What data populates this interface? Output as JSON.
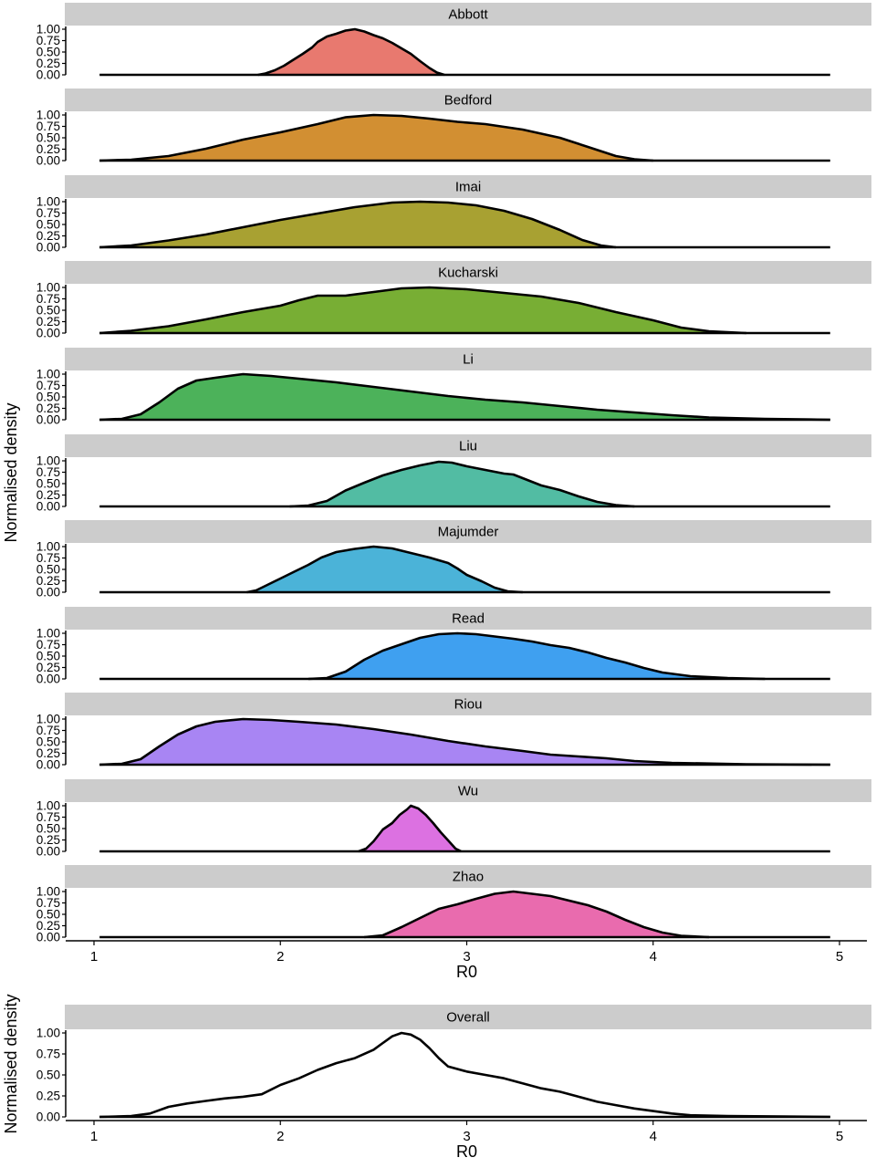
{
  "chart_data": [
    {
      "type": "area",
      "layout": "faceted small multiples, stacked vertically, shared x axis",
      "xlabel": "R0",
      "ylabel": "Normalised density",
      "xlim": [
        1,
        5
      ],
      "ylim": [
        0,
        1
      ],
      "xticks": [
        "1",
        "2",
        "3",
        "4",
        "5"
      ],
      "yticks": [
        "0.00",
        "0.25",
        "0.50",
        "0.75",
        "1.00"
      ],
      "grid": false,
      "legend": "none",
      "facets": [
        {
          "name": "Abbott",
          "color": "#E8796F",
          "points": [
            [
              1.88,
              0
            ],
            [
              1.92,
              0.03
            ],
            [
              1.97,
              0.1
            ],
            [
              2.02,
              0.2
            ],
            [
              2.07,
              0.33
            ],
            [
              2.12,
              0.46
            ],
            [
              2.17,
              0.6
            ],
            [
              2.2,
              0.72
            ],
            [
              2.25,
              0.84
            ],
            [
              2.3,
              0.9
            ],
            [
              2.35,
              0.97
            ],
            [
              2.4,
              1.0
            ],
            [
              2.45,
              0.95
            ],
            [
              2.5,
              0.87
            ],
            [
              2.55,
              0.8
            ],
            [
              2.6,
              0.7
            ],
            [
              2.65,
              0.58
            ],
            [
              2.7,
              0.46
            ],
            [
              2.75,
              0.3
            ],
            [
              2.8,
              0.15
            ],
            [
              2.84,
              0.05
            ],
            [
              2.88,
              0
            ]
          ]
        },
        {
          "name": "Bedford",
          "color": "#D28F32",
          "points": [
            [
              1.03,
              0
            ],
            [
              1.2,
              0.02
            ],
            [
              1.4,
              0.1
            ],
            [
              1.6,
              0.26
            ],
            [
              1.8,
              0.46
            ],
            [
              2.0,
              0.62
            ],
            [
              2.2,
              0.8
            ],
            [
              2.35,
              0.95
            ],
            [
              2.5,
              1.0
            ],
            [
              2.65,
              0.98
            ],
            [
              2.8,
              0.92
            ],
            [
              2.95,
              0.85
            ],
            [
              3.1,
              0.8
            ],
            [
              3.3,
              0.68
            ],
            [
              3.5,
              0.5
            ],
            [
              3.65,
              0.3
            ],
            [
              3.8,
              0.1
            ],
            [
              3.9,
              0.03
            ],
            [
              4.0,
              0
            ]
          ]
        },
        {
          "name": "Imai",
          "color": "#A8A132",
          "points": [
            [
              1.03,
              0
            ],
            [
              1.2,
              0.04
            ],
            [
              1.4,
              0.15
            ],
            [
              1.6,
              0.28
            ],
            [
              1.8,
              0.44
            ],
            [
              2.0,
              0.6
            ],
            [
              2.2,
              0.74
            ],
            [
              2.4,
              0.88
            ],
            [
              2.6,
              0.98
            ],
            [
              2.75,
              1.0
            ],
            [
              2.9,
              0.98
            ],
            [
              3.05,
              0.92
            ],
            [
              3.2,
              0.8
            ],
            [
              3.35,
              0.62
            ],
            [
              3.5,
              0.38
            ],
            [
              3.62,
              0.16
            ],
            [
              3.72,
              0.04
            ],
            [
              3.8,
              0
            ]
          ]
        },
        {
          "name": "Kucharski",
          "color": "#78AE34",
          "points": [
            [
              1.03,
              0
            ],
            [
              1.2,
              0.05
            ],
            [
              1.4,
              0.15
            ],
            [
              1.6,
              0.3
            ],
            [
              1.8,
              0.46
            ],
            [
              2.0,
              0.6
            ],
            [
              2.1,
              0.72
            ],
            [
              2.2,
              0.82
            ],
            [
              2.35,
              0.82
            ],
            [
              2.5,
              0.9
            ],
            [
              2.65,
              0.98
            ],
            [
              2.8,
              1.0
            ],
            [
              3.0,
              0.96
            ],
            [
              3.2,
              0.88
            ],
            [
              3.4,
              0.8
            ],
            [
              3.6,
              0.66
            ],
            [
              3.8,
              0.46
            ],
            [
              4.0,
              0.28
            ],
            [
              4.15,
              0.12
            ],
            [
              4.3,
              0.04
            ],
            [
              4.5,
              0
            ]
          ]
        },
        {
          "name": "Li",
          "color": "#4CB25A",
          "points": [
            [
              1.03,
              0
            ],
            [
              1.15,
              0.02
            ],
            [
              1.25,
              0.12
            ],
            [
              1.35,
              0.38
            ],
            [
              1.45,
              0.68
            ],
            [
              1.55,
              0.86
            ],
            [
              1.65,
              0.92
            ],
            [
              1.8,
              1.0
            ],
            [
              1.95,
              0.96
            ],
            [
              2.1,
              0.9
            ],
            [
              2.3,
              0.82
            ],
            [
              2.5,
              0.72
            ],
            [
              2.7,
              0.62
            ],
            [
              2.9,
              0.52
            ],
            [
              3.1,
              0.44
            ],
            [
              3.3,
              0.38
            ],
            [
              3.5,
              0.3
            ],
            [
              3.7,
              0.22
            ],
            [
              3.9,
              0.16
            ],
            [
              4.1,
              0.1
            ],
            [
              4.3,
              0.05
            ],
            [
              4.6,
              0.02
            ],
            [
              4.95,
              0
            ]
          ]
        },
        {
          "name": "Liu",
          "color": "#52BCA3",
          "points": [
            [
              2.05,
              0
            ],
            [
              2.15,
              0.02
            ],
            [
              2.25,
              0.12
            ],
            [
              2.35,
              0.35
            ],
            [
              2.45,
              0.52
            ],
            [
              2.55,
              0.68
            ],
            [
              2.65,
              0.8
            ],
            [
              2.75,
              0.9
            ],
            [
              2.85,
              0.98
            ],
            [
              2.92,
              0.96
            ],
            [
              3.0,
              0.88
            ],
            [
              3.1,
              0.8
            ],
            [
              3.2,
              0.72
            ],
            [
              3.25,
              0.7
            ],
            [
              3.3,
              0.62
            ],
            [
              3.4,
              0.46
            ],
            [
              3.5,
              0.36
            ],
            [
              3.6,
              0.22
            ],
            [
              3.7,
              0.1
            ],
            [
              3.8,
              0.03
            ],
            [
              3.9,
              0
            ]
          ]
        },
        {
          "name": "Majumder",
          "color": "#4BB3D8",
          "points": [
            [
              1.82,
              0
            ],
            [
              1.87,
              0.04
            ],
            [
              1.93,
              0.16
            ],
            [
              2.0,
              0.3
            ],
            [
              2.07,
              0.44
            ],
            [
              2.15,
              0.6
            ],
            [
              2.22,
              0.76
            ],
            [
              2.3,
              0.88
            ],
            [
              2.4,
              0.95
            ],
            [
              2.5,
              1.0
            ],
            [
              2.6,
              0.96
            ],
            [
              2.7,
              0.86
            ],
            [
              2.8,
              0.76
            ],
            [
              2.9,
              0.64
            ],
            [
              2.95,
              0.52
            ],
            [
              3.0,
              0.38
            ],
            [
              3.08,
              0.24
            ],
            [
              3.15,
              0.1
            ],
            [
              3.22,
              0.02
            ],
            [
              3.3,
              0
            ]
          ]
        },
        {
          "name": "Read",
          "color": "#3FA0F0",
          "points": [
            [
              2.15,
              0
            ],
            [
              2.25,
              0.02
            ],
            [
              2.35,
              0.16
            ],
            [
              2.45,
              0.42
            ],
            [
              2.55,
              0.62
            ],
            [
              2.65,
              0.76
            ],
            [
              2.75,
              0.9
            ],
            [
              2.85,
              0.98
            ],
            [
              2.95,
              1.0
            ],
            [
              3.05,
              0.98
            ],
            [
              3.15,
              0.93
            ],
            [
              3.25,
              0.88
            ],
            [
              3.35,
              0.82
            ],
            [
              3.45,
              0.74
            ],
            [
              3.55,
              0.68
            ],
            [
              3.65,
              0.58
            ],
            [
              3.75,
              0.46
            ],
            [
              3.85,
              0.36
            ],
            [
              3.95,
              0.24
            ],
            [
              4.05,
              0.14
            ],
            [
              4.2,
              0.06
            ],
            [
              4.4,
              0.02
            ],
            [
              4.6,
              0
            ]
          ]
        },
        {
          "name": "Riou",
          "color": "#A885F3",
          "points": [
            [
              1.03,
              0
            ],
            [
              1.15,
              0.02
            ],
            [
              1.25,
              0.12
            ],
            [
              1.35,
              0.4
            ],
            [
              1.45,
              0.66
            ],
            [
              1.55,
              0.84
            ],
            [
              1.65,
              0.94
            ],
            [
              1.8,
              1.0
            ],
            [
              1.95,
              0.98
            ],
            [
              2.1,
              0.94
            ],
            [
              2.3,
              0.88
            ],
            [
              2.5,
              0.78
            ],
            [
              2.7,
              0.66
            ],
            [
              2.9,
              0.52
            ],
            [
              3.1,
              0.4
            ],
            [
              3.3,
              0.3
            ],
            [
              3.45,
              0.22
            ],
            [
              3.6,
              0.18
            ],
            [
              3.75,
              0.14
            ],
            [
              3.9,
              0.08
            ],
            [
              4.1,
              0.04
            ],
            [
              4.5,
              0.01
            ],
            [
              4.95,
              0
            ]
          ]
        },
        {
          "name": "Wu",
          "color": "#DC71E1",
          "points": [
            [
              2.42,
              0
            ],
            [
              2.46,
              0.06
            ],
            [
              2.5,
              0.22
            ],
            [
              2.55,
              0.48
            ],
            [
              2.6,
              0.62
            ],
            [
              2.64,
              0.8
            ],
            [
              2.68,
              0.92
            ],
            [
              2.7,
              1.0
            ],
            [
              2.74,
              0.94
            ],
            [
              2.78,
              0.8
            ],
            [
              2.82,
              0.62
            ],
            [
              2.86,
              0.42
            ],
            [
              2.9,
              0.24
            ],
            [
              2.94,
              0.06
            ],
            [
              2.97,
              0
            ]
          ]
        },
        {
          "name": "Zhao",
          "color": "#E96BAE",
          "points": [
            [
              2.45,
              0
            ],
            [
              2.55,
              0.04
            ],
            [
              2.65,
              0.22
            ],
            [
              2.75,
              0.42
            ],
            [
              2.85,
              0.62
            ],
            [
              2.95,
              0.72
            ],
            [
              3.05,
              0.84
            ],
            [
              3.15,
              0.95
            ],
            [
              3.25,
              1.0
            ],
            [
              3.35,
              0.95
            ],
            [
              3.45,
              0.9
            ],
            [
              3.55,
              0.8
            ],
            [
              3.65,
              0.7
            ],
            [
              3.75,
              0.56
            ],
            [
              3.85,
              0.38
            ],
            [
              3.95,
              0.22
            ],
            [
              4.05,
              0.1
            ],
            [
              4.15,
              0.03
            ],
            [
              4.3,
              0
            ]
          ]
        }
      ]
    },
    {
      "type": "line",
      "xlabel": "R0",
      "ylabel": "Normalised density",
      "xlim": [
        1,
        5
      ],
      "ylim": [
        0,
        1
      ],
      "xticks": [
        "1",
        "2",
        "3",
        "4",
        "5"
      ],
      "yticks": [
        "0.00",
        "0.25",
        "0.50",
        "0.75",
        "1.00"
      ],
      "grid": false,
      "legend": "none",
      "facets": [
        {
          "name": "Overall",
          "color": "#000000",
          "points": [
            [
              1.03,
              0
            ],
            [
              1.2,
              0.01
            ],
            [
              1.3,
              0.04
            ],
            [
              1.4,
              0.12
            ],
            [
              1.5,
              0.16
            ],
            [
              1.6,
              0.19
            ],
            [
              1.7,
              0.22
            ],
            [
              1.8,
              0.24
            ],
            [
              1.9,
              0.27
            ],
            [
              2.0,
              0.38
            ],
            [
              2.1,
              0.46
            ],
            [
              2.2,
              0.56
            ],
            [
              2.3,
              0.64
            ],
            [
              2.4,
              0.7
            ],
            [
              2.5,
              0.8
            ],
            [
              2.55,
              0.88
            ],
            [
              2.6,
              0.96
            ],
            [
              2.65,
              1.0
            ],
            [
              2.7,
              0.98
            ],
            [
              2.75,
              0.92
            ],
            [
              2.8,
              0.82
            ],
            [
              2.85,
              0.7
            ],
            [
              2.9,
              0.6
            ],
            [
              3.0,
              0.54
            ],
            [
              3.1,
              0.5
            ],
            [
              3.2,
              0.46
            ],
            [
              3.3,
              0.4
            ],
            [
              3.4,
              0.34
            ],
            [
              3.5,
              0.3
            ],
            [
              3.6,
              0.24
            ],
            [
              3.7,
              0.18
            ],
            [
              3.8,
              0.14
            ],
            [
              3.9,
              0.1
            ],
            [
              4.0,
              0.07
            ],
            [
              4.1,
              0.04
            ],
            [
              4.2,
              0.02
            ],
            [
              4.4,
              0.01
            ],
            [
              4.95,
              0
            ]
          ]
        }
      ]
    }
  ]
}
